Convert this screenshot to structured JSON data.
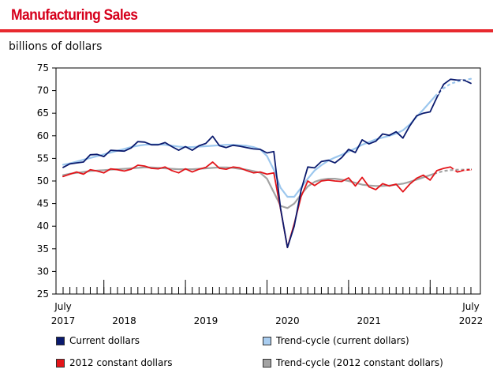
{
  "header": {
    "title": "Manufacturing Sales"
  },
  "chart_data": {
    "type": "line",
    "title": "Manufacturing Sales",
    "ylabel": "billions of dollars",
    "ylim": [
      25,
      75
    ],
    "yticks": [
      25,
      30,
      35,
      40,
      45,
      50,
      55,
      60,
      65,
      70,
      75
    ],
    "x_range": [
      0,
      60
    ],
    "x_tick_labels": [
      {
        "pos": 0,
        "line1": "July",
        "line2": "2017"
      },
      {
        "pos": 9,
        "line1": "",
        "line2": "2018"
      },
      {
        "pos": 21,
        "line1": "",
        "line2": "2019"
      },
      {
        "pos": 33,
        "line1": "",
        "line2": "2020"
      },
      {
        "pos": 45,
        "line1": "",
        "line2": "2021"
      },
      {
        "pos": 60,
        "line1": "July",
        "line2": "2022"
      }
    ],
    "year_dividers": [
      6,
      18,
      30,
      42,
      54
    ],
    "series": [
      {
        "name": "Current dollars",
        "color": "#0a1a6e",
        "style": "solid",
        "values": [
          53.0,
          53.8,
          54.0,
          54.2,
          55.8,
          55.9,
          55.4,
          56.8,
          56.7,
          56.6,
          57.3,
          58.7,
          58.6,
          58.0,
          58.0,
          58.5,
          57.6,
          56.8,
          57.6,
          56.8,
          57.8,
          58.3,
          59.9,
          57.8,
          57.4,
          57.9,
          57.7,
          57.4,
          57.1,
          57.0,
          56.2,
          56.5,
          43.9,
          35.3,
          40.0,
          47.9,
          53.1,
          52.9,
          54.3,
          54.6,
          54.0,
          55.2,
          57.0,
          56.3,
          59.1,
          58.2,
          58.8,
          60.4,
          60.1,
          60.9,
          59.5,
          62.2,
          64.4,
          65.0,
          65.3,
          68.5,
          71.4,
          72.5,
          72.3,
          72.3,
          71.6
        ]
      },
      {
        "name": "Trend-cycle (current dollars)",
        "color": "#9cc7ee",
        "style": "solid",
        "values": [
          53.6,
          53.9,
          54.3,
          54.7,
          55.1,
          55.5,
          55.9,
          56.3,
          56.7,
          57.1,
          57.5,
          57.8,
          58.0,
          58.1,
          58.1,
          58.0,
          57.8,
          57.6,
          57.5,
          57.5,
          57.6,
          57.7,
          57.8,
          57.9,
          58.0,
          58.0,
          57.9,
          57.8,
          57.5,
          57.0,
          55.5,
          52.5,
          48.5,
          46.5,
          46.5,
          48.5,
          50.5,
          52.3,
          53.5,
          54.5,
          55.2,
          55.8,
          56.5,
          57.2,
          58.0,
          58.6,
          59.2,
          59.6,
          60.0,
          60.5,
          61.2,
          62.5,
          64.2,
          65.8,
          67.5,
          69.2,
          70.5,
          71.5,
          72.0,
          72.3,
          72.6
        ]
      },
      {
        "name": "2012 constant dollars",
        "color": "#e3151a",
        "style": "solid",
        "values": [
          51.0,
          51.5,
          52.0,
          51.5,
          52.5,
          52.2,
          51.8,
          52.7,
          52.5,
          52.2,
          52.6,
          53.5,
          53.3,
          52.8,
          52.7,
          53.1,
          52.3,
          51.8,
          52.7,
          52.0,
          52.6,
          53.0,
          54.2,
          52.8,
          52.6,
          53.1,
          52.9,
          52.3,
          51.8,
          52.0,
          51.5,
          51.8,
          43.8,
          35.3,
          40.5,
          46.5,
          50.0,
          49.0,
          50.0,
          50.2,
          50.0,
          49.9,
          50.7,
          48.9,
          50.8,
          48.7,
          48.1,
          49.4,
          48.9,
          49.3,
          47.6,
          49.3,
          50.6,
          51.3,
          50.2,
          52.3,
          52.8,
          53.1,
          52.0,
          52.4,
          52.5
        ]
      },
      {
        "name": "Trend-cycle (2012 constant dollars)",
        "color": "#a3a3a3",
        "style": "solid",
        "values": [
          51.3,
          51.6,
          51.8,
          52.0,
          52.2,
          52.3,
          52.4,
          52.5,
          52.6,
          52.7,
          52.8,
          52.9,
          53.0,
          53.0,
          52.9,
          52.8,
          52.7,
          52.6,
          52.6,
          52.6,
          52.7,
          52.8,
          52.9,
          53.0,
          53.0,
          52.9,
          52.7,
          52.5,
          52.2,
          51.8,
          50.5,
          47.5,
          44.5,
          44.0,
          45.0,
          47.0,
          48.8,
          49.8,
          50.3,
          50.5,
          50.5,
          50.3,
          50.0,
          49.6,
          49.2,
          49.0,
          48.9,
          48.9,
          49.0,
          49.2,
          49.4,
          49.8,
          50.3,
          50.8,
          51.3,
          51.8,
          52.2,
          52.4,
          52.5,
          52.5,
          52.6
        ]
      }
    ],
    "legend": [
      {
        "label": "Current dollars",
        "color": "#0a1a6e"
      },
      {
        "label": "Trend-cycle (current dollars)",
        "color": "#a9cdf0"
      },
      {
        "label": "2012 constant dollars",
        "color": "#e3151a"
      },
      {
        "label": "Trend-cycle (2012 constant dollars)",
        "color": "#a3a3a3"
      }
    ]
  }
}
